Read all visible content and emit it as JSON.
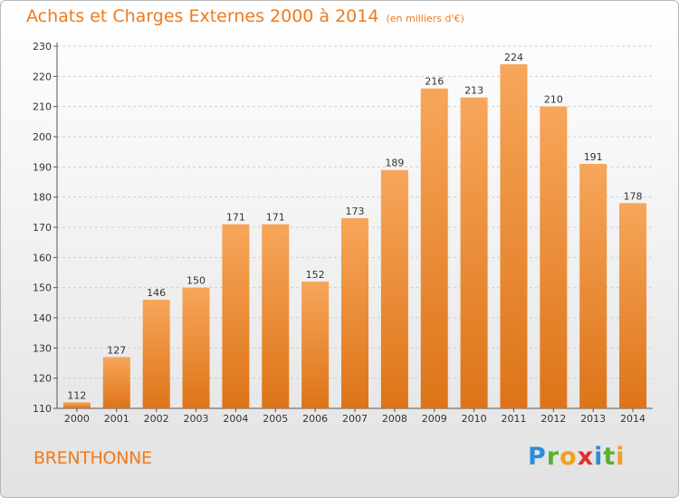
{
  "header": {
    "title": "Achats et Charges Externes 2000 à 2014",
    "subtitle": "(en milliers d'€)"
  },
  "footer": {
    "commune": "BRENTHONNE",
    "logo": [
      "P",
      "r",
      "o",
      "x",
      "i",
      "t",
      "i"
    ]
  },
  "colors": {
    "bar_top": "#f7a65a",
    "bar_bottom": "#dd7418",
    "title": "#f07a1c"
  },
  "chart_data": {
    "type": "bar",
    "title": "Achats et Charges Externes 2000 à 2014",
    "subtitle": "(en milliers d'€)",
    "categories": [
      "2000",
      "2001",
      "2002",
      "2003",
      "2004",
      "2005",
      "2006",
      "2007",
      "2008",
      "2009",
      "2010",
      "2011",
      "2012",
      "2013",
      "2014"
    ],
    "values": [
      112,
      127,
      146,
      150,
      171,
      171,
      152,
      173,
      189,
      216,
      213,
      224,
      210,
      191,
      178
    ],
    "ylim": [
      110,
      230
    ],
    "yticks": [
      110,
      120,
      130,
      140,
      150,
      160,
      170,
      180,
      190,
      200,
      210,
      220,
      230
    ],
    "grid": true,
    "xlabel": "",
    "ylabel": ""
  }
}
